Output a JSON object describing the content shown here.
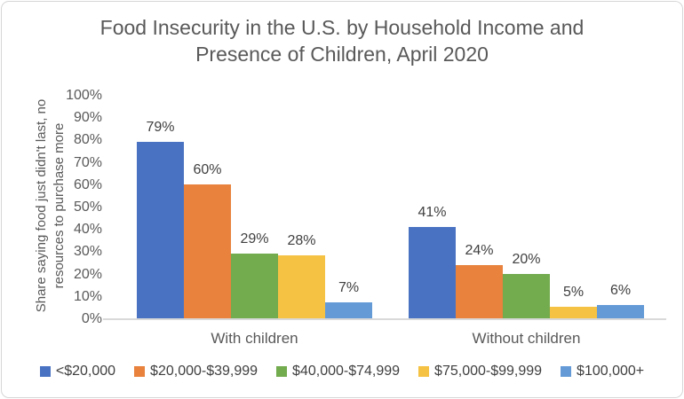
{
  "chart_data": {
    "type": "bar",
    "title_line1": "Food Insecurity in the U.S. by Household Income and",
    "title_line2": "Presence of Children, April 2020",
    "y_axis_title_line1": "Share saying food just didn't last, no",
    "y_axis_title_line2": "resources to purchase more",
    "categories": [
      "With children",
      "Without children"
    ],
    "series": [
      {
        "name": "<$20,000",
        "color": "#4973C2",
        "values": [
          79,
          41
        ]
      },
      {
        "name": "$20,000-$39,999",
        "color": "#E8823C",
        "values": [
          60,
          24
        ]
      },
      {
        "name": "$40,000-$74,999",
        "color": "#73AB4F",
        "values": [
          29,
          20
        ]
      },
      {
        "name": "$75,000-$99,999",
        "color": "#F5C243",
        "values": [
          28,
          5
        ]
      },
      {
        "name": "$100,000+",
        "color": "#649BD7",
        "values": [
          7,
          6
        ]
      }
    ],
    "data_labels_shown": true,
    "data_label_suffix": "%",
    "yticks": [
      "100%",
      "90%",
      "80%",
      "70%",
      "60%",
      "50%",
      "40%",
      "30%",
      "20%",
      "10%",
      "0%"
    ],
    "ylim": [
      0,
      100
    ],
    "grid": false,
    "legend_position": "bottom",
    "colors": {
      "title_text": "#595959",
      "axis_text": "#595959",
      "data_label_text": "#404040",
      "legend_text": "#404040",
      "axis_line": "#D9D9D9"
    }
  }
}
